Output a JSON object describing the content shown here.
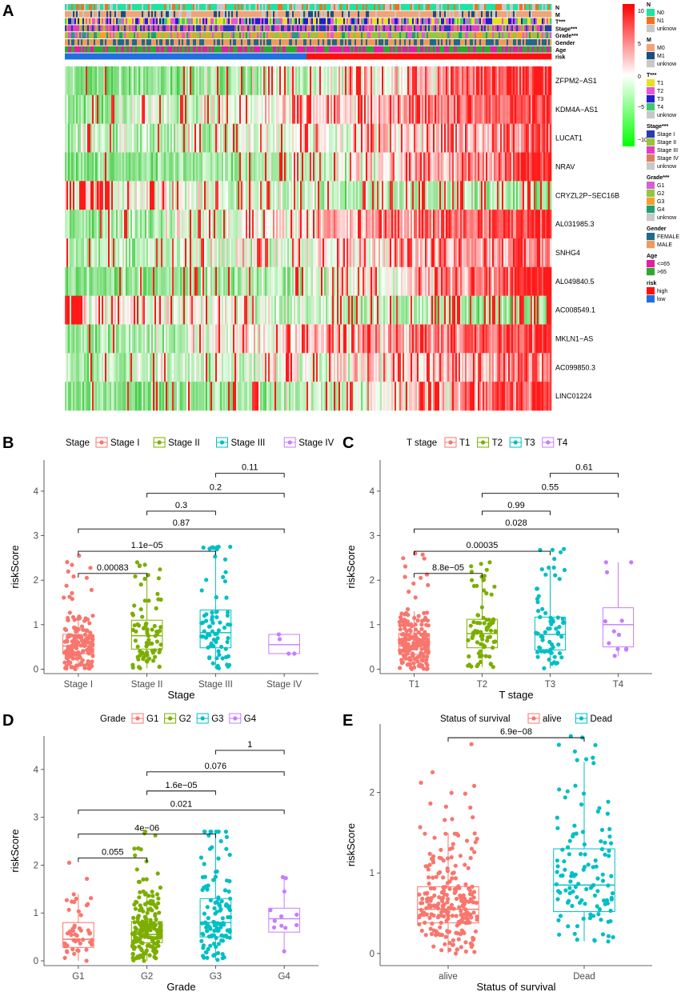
{
  "panel_labels": [
    "A",
    "B",
    "C",
    "D",
    "E"
  ],
  "chart_data": [
    {
      "panel": "A",
      "type": "heatmap",
      "annotation_rows": [
        "N",
        "M",
        "T***",
        "Stage***",
        "Grade***",
        "Gender",
        "Age",
        "risk"
      ],
      "genes": [
        "ZFPM2−AS1",
        "KDM4A−AS1",
        "LUCAT1",
        "NRAV",
        "CRYZL2P−SEC16B",
        "AL031985.3",
        "SNHG4",
        "AL049840.5",
        "AC008549.1",
        "MKLN1−AS",
        "AC099850.3",
        "LINC01224"
      ],
      "colorbar": {
        "ticks": [
          "10",
          "5",
          "0",
          "−5",
          "−10"
        ],
        "low": -10,
        "high": 10,
        "colors": [
          "#00ff00",
          "#ffffff",
          "#ff0000"
        ]
      },
      "legends": [
        {
          "title": "N",
          "items": [
            {
              "label": "N0",
              "color": "#1fe3a0"
            },
            {
              "label": "N1",
              "color": "#f2711e"
            },
            {
              "label": "unknow",
              "color": "#c8c8c8"
            }
          ]
        },
        {
          "title": "M",
          "items": [
            {
              "label": "M0",
              "color": "#f0a47a"
            },
            {
              "label": "M1",
              "color": "#1c4e7c"
            },
            {
              "label": "unknow",
              "color": "#c8c8c8"
            }
          ]
        },
        {
          "title": "T***",
          "items": [
            {
              "label": "T1",
              "color": "#e8e020"
            },
            {
              "label": "T2",
              "color": "#e455e0"
            },
            {
              "label": "T3",
              "color": "#2020c8"
            },
            {
              "label": "T4",
              "color": "#40c870"
            },
            {
              "label": "unknow",
              "color": "#c8c8c8"
            }
          ]
        },
        {
          "title": "Stage***",
          "items": [
            {
              "label": "Stage I",
              "color": "#2a3bb0"
            },
            {
              "label": "Stage II",
              "color": "#98c43a"
            },
            {
              "label": "Stage III",
              "color": "#e040c0"
            },
            {
              "label": "Stage IV",
              "color": "#d88060"
            },
            {
              "label": "unknow",
              "color": "#c8c8c8"
            }
          ]
        },
        {
          "title": "Grade***",
          "items": [
            {
              "label": "G1",
              "color": "#d960d0"
            },
            {
              "label": "G2",
              "color": "#90c840"
            },
            {
              "label": "G3",
              "color": "#f2a030"
            },
            {
              "label": "G4",
              "color": "#20a070"
            },
            {
              "label": "unknow",
              "color": "#c8c8c8"
            }
          ]
        },
        {
          "title": "Gender",
          "items": [
            {
              "label": "FEMALE",
              "color": "#1f6a8a"
            },
            {
              "label": "MALE",
              "color": "#f09a5a"
            }
          ]
        },
        {
          "title": "Age",
          "items": [
            {
              "label": "<=65",
              "color": "#e020a0"
            },
            {
              "label": ">65",
              "color": "#30a830"
            }
          ]
        },
        {
          "title": "risk",
          "items": [
            {
              "label": "high",
              "color": "#ff1010"
            },
            {
              "label": "low",
              "color": "#1f6fe0"
            }
          ]
        }
      ]
    },
    {
      "panel": "B",
      "type": "box",
      "legend_title": "Stage",
      "xlabel": "Stage",
      "ylabel": "riskScore",
      "categories": [
        "Stage I",
        "Stage II",
        "Stage III",
        "Stage IV"
      ],
      "colors": [
        "#f8766d",
        "#7cae00",
        "#00bfc4",
        "#c77cff"
      ],
      "ylim": [
        -0.1,
        4.7
      ],
      "yticks": [
        0,
        1,
        2,
        3,
        4
      ],
      "boxes": [
        {
          "q1": 0.35,
          "median": 0.52,
          "q3": 0.78,
          "lo": 0.0,
          "hi": 1.2,
          "n": 170,
          "max": 2.55
        },
        {
          "q1": 0.45,
          "median": 0.75,
          "q3": 1.1,
          "lo": 0.02,
          "hi": 2.05,
          "n": 80,
          "max": 2.4
        },
        {
          "q1": 0.48,
          "median": 0.82,
          "q3": 1.33,
          "lo": 0.02,
          "hi": 2.7,
          "n": 75,
          "max": 2.75
        },
        {
          "q1": 0.35,
          "median": 0.55,
          "q3": 0.78,
          "lo": 0.35,
          "hi": 0.78,
          "n": 4,
          "max": 0.78
        }
      ],
      "comparisons": [
        {
          "a": 0,
          "b": 1,
          "y": 2.15,
          "p": "0.00083"
        },
        {
          "a": 0,
          "b": 2,
          "y": 2.65,
          "p": "1.1e−05"
        },
        {
          "a": 0,
          "b": 3,
          "y": 3.15,
          "p": "0.87"
        },
        {
          "a": 1,
          "b": 2,
          "y": 3.55,
          "p": "0.3"
        },
        {
          "a": 1,
          "b": 3,
          "y": 3.95,
          "p": "0.2"
        },
        {
          "a": 2,
          "b": 3,
          "y": 4.4,
          "p": "0.11"
        }
      ]
    },
    {
      "panel": "C",
      "type": "box",
      "legend_title": "T stage",
      "xlabel": "T stage",
      "ylabel": "riskScore",
      "categories": [
        "T1",
        "T2",
        "T3",
        "T4"
      ],
      "colors": [
        "#f8766d",
        "#7cae00",
        "#00bfc4",
        "#c77cff"
      ],
      "ylim": [
        -0.1,
        4.7
      ],
      "yticks": [
        0,
        1,
        2,
        3,
        4
      ],
      "boxes": [
        {
          "q1": 0.33,
          "median": 0.52,
          "q3": 0.8,
          "lo": 0.0,
          "hi": 1.3,
          "n": 180,
          "max": 2.6
        },
        {
          "q1": 0.48,
          "median": 0.8,
          "q3": 1.12,
          "lo": 0.05,
          "hi": 2.1,
          "n": 80,
          "max": 2.4
        },
        {
          "q1": 0.43,
          "median": 0.78,
          "q3": 1.17,
          "lo": 0.02,
          "hi": 2.25,
          "n": 70,
          "max": 2.7
        },
        {
          "q1": 0.5,
          "median": 1.0,
          "q3": 1.38,
          "lo": 0.3,
          "hi": 2.4,
          "n": 12,
          "max": 2.4
        }
      ],
      "comparisons": [
        {
          "a": 0,
          "b": 1,
          "y": 2.15,
          "p": "8.8e−05"
        },
        {
          "a": 0,
          "b": 2,
          "y": 2.65,
          "p": "0.00035"
        },
        {
          "a": 0,
          "b": 3,
          "y": 3.15,
          "p": "0.028"
        },
        {
          "a": 1,
          "b": 2,
          "y": 3.55,
          "p": "0.99"
        },
        {
          "a": 1,
          "b": 3,
          "y": 3.95,
          "p": "0.55"
        },
        {
          "a": 2,
          "b": 3,
          "y": 4.4,
          "p": "0.61"
        }
      ]
    },
    {
      "panel": "D",
      "type": "box",
      "legend_title": "Grade",
      "xlabel": "Grade",
      "ylabel": "riskScore",
      "categories": [
        "G1",
        "G2",
        "G3",
        "G4"
      ],
      "colors": [
        "#f8766d",
        "#7cae00",
        "#00bfc4",
        "#c77cff"
      ],
      "ylim": [
        -0.1,
        4.7
      ],
      "yticks": [
        0,
        1,
        2,
        3,
        4
      ],
      "boxes": [
        {
          "q1": 0.28,
          "median": 0.45,
          "q3": 0.8,
          "lo": 0.0,
          "hi": 1.4,
          "n": 50,
          "max": 2.05
        },
        {
          "q1": 0.38,
          "median": 0.55,
          "q3": 0.82,
          "lo": 0.0,
          "hi": 1.45,
          "n": 190,
          "max": 2.7
        },
        {
          "q1": 0.5,
          "median": 0.8,
          "q3": 1.3,
          "lo": 0.02,
          "hi": 2.7,
          "n": 120,
          "max": 2.7
        },
        {
          "q1": 0.6,
          "median": 0.88,
          "q3": 1.1,
          "lo": 0.2,
          "hi": 1.75,
          "n": 12,
          "max": 1.75
        }
      ],
      "comparisons": [
        {
          "a": 0,
          "b": 1,
          "y": 2.15,
          "p": "0.055"
        },
        {
          "a": 0,
          "b": 2,
          "y": 2.65,
          "p": "4e−06"
        },
        {
          "a": 0,
          "b": 3,
          "y": 3.15,
          "p": "0.021"
        },
        {
          "a": 1,
          "b": 2,
          "y": 3.55,
          "p": "1.6e−05"
        },
        {
          "a": 1,
          "b": 3,
          "y": 3.95,
          "p": "0.076"
        },
        {
          "a": 2,
          "b": 3,
          "y": 4.4,
          "p": "1"
        }
      ]
    },
    {
      "panel": "E",
      "type": "box",
      "legend_title": "Status of survival",
      "xlabel": "Status of survival",
      "ylabel": "riskScore",
      "categories": [
        "alive",
        "Dead"
      ],
      "colors": [
        "#f8766d",
        "#00bfc4"
      ],
      "ylim": [
        -0.15,
        2.85
      ],
      "yticks": [
        0,
        1,
        2
      ],
      "boxes": [
        {
          "q1": 0.38,
          "median": 0.55,
          "q3": 0.83,
          "lo": 0.0,
          "hi": 1.5,
          "n": 250,
          "max": 2.6
        },
        {
          "q1": 0.52,
          "median": 0.85,
          "q3": 1.3,
          "lo": 0.15,
          "hi": 2.38,
          "n": 120,
          "max": 2.7
        }
      ],
      "comparisons": [
        {
          "a": 0,
          "b": 1,
          "y": 2.68,
          "p": "6.9e−08"
        }
      ]
    }
  ]
}
